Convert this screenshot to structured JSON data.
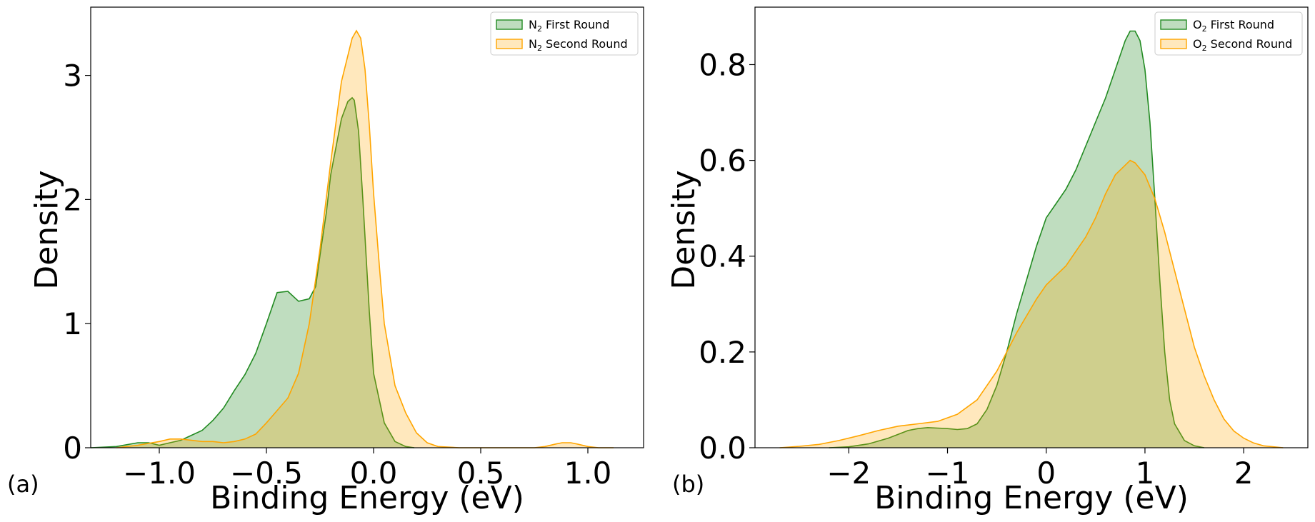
{
  "figure": {
    "panels": [
      {
        "id": "a",
        "panel_label": "(a)"
      },
      {
        "id": "b",
        "panel_label": "(b)"
      }
    ]
  },
  "chart_data": [
    {
      "type": "area",
      "panel_label": "(a)",
      "xlabel": "Binding Energy (eV)",
      "ylabel": "Density",
      "xlim": [
        -1.32,
        1.26
      ],
      "ylim": [
        0,
        3.55
      ],
      "xticks": [
        -1.0,
        -0.5,
        0.0,
        0.5,
        1.0
      ],
      "xtick_labels": [
        "−1.0",
        "−0.5",
        "0.0",
        "0.5",
        "1.0"
      ],
      "yticks": [
        0,
        1,
        2,
        3
      ],
      "ytick_labels": [
        "0",
        "1",
        "2",
        "3"
      ],
      "grid": false,
      "legend_position": "top-right",
      "series": [
        {
          "name": "N",
          "name_sub": "2",
          "name_suffix": " First Round",
          "color": "#228B22",
          "fill": "rgba(34,139,34,0.29)",
          "x": [
            -1.32,
            -1.2,
            -1.1,
            -1.05,
            -1.0,
            -0.95,
            -0.9,
            -0.85,
            -0.8,
            -0.75,
            -0.7,
            -0.65,
            -0.6,
            -0.55,
            -0.5,
            -0.45,
            -0.4,
            -0.35,
            -0.3,
            -0.27,
            -0.25,
            -0.22,
            -0.2,
            -0.15,
            -0.12,
            -0.1,
            -0.09,
            -0.07,
            -0.05,
            -0.02,
            0.0,
            0.05,
            0.1,
            0.15,
            0.19
          ],
          "y": [
            0.0,
            0.01,
            0.04,
            0.04,
            0.02,
            0.04,
            0.06,
            0.1,
            0.14,
            0.22,
            0.32,
            0.46,
            0.59,
            0.76,
            1.0,
            1.25,
            1.26,
            1.18,
            1.2,
            1.3,
            1.55,
            1.9,
            2.2,
            2.65,
            2.79,
            2.82,
            2.8,
            2.55,
            2.0,
            1.1,
            0.6,
            0.2,
            0.05,
            0.01,
            0.0
          ]
        },
        {
          "name": "N",
          "name_sub": "2",
          "name_suffix": " Second Round",
          "color": "#FFA500",
          "fill": "rgba(255,165,0,0.26)",
          "x": [
            -1.2,
            -1.1,
            -1.0,
            -0.95,
            -0.9,
            -0.85,
            -0.8,
            -0.75,
            -0.7,
            -0.65,
            -0.6,
            -0.55,
            -0.5,
            -0.45,
            -0.4,
            -0.35,
            -0.3,
            -0.25,
            -0.2,
            -0.15,
            -0.1,
            -0.08,
            -0.06,
            -0.04,
            -0.02,
            0.0,
            0.03,
            0.05,
            0.1,
            0.15,
            0.2,
            0.25,
            0.3,
            0.4,
            0.5,
            0.6,
            0.7,
            0.75,
            0.8,
            0.85,
            0.88,
            0.92,
            0.95,
            1.0,
            1.05,
            1.12
          ],
          "y": [
            0.0,
            0.02,
            0.05,
            0.07,
            0.07,
            0.06,
            0.05,
            0.05,
            0.04,
            0.05,
            0.07,
            0.11,
            0.2,
            0.3,
            0.4,
            0.6,
            1.0,
            1.6,
            2.3,
            2.95,
            3.3,
            3.36,
            3.3,
            3.05,
            2.6,
            2.05,
            1.4,
            1.0,
            0.5,
            0.28,
            0.12,
            0.04,
            0.01,
            0.0,
            0.0,
            0.0,
            0.0,
            0.0,
            0.01,
            0.03,
            0.04,
            0.04,
            0.03,
            0.01,
            0.0,
            0.0
          ]
        }
      ]
    },
    {
      "type": "area",
      "panel_label": "(b)",
      "xlabel": "Binding Energy (eV)",
      "ylabel": "Density",
      "xlim": [
        -2.95,
        2.65
      ],
      "ylim": [
        0,
        0.92
      ],
      "xticks": [
        -2,
        -1,
        0,
        1,
        2
      ],
      "xtick_labels": [
        "−2",
        "−1",
        "0",
        "1",
        "2"
      ],
      "yticks": [
        0.0,
        0.2,
        0.4,
        0.6,
        0.8
      ],
      "ytick_labels": [
        "0.0",
        "0.2",
        "0.4",
        "0.6",
        "0.8"
      ],
      "grid": false,
      "legend_position": "top-right",
      "series": [
        {
          "name": "O",
          "name_sub": "2",
          "name_suffix": " First Round",
          "color": "#228B22",
          "fill": "rgba(34,139,34,0.29)",
          "x": [
            -2.2,
            -2.0,
            -1.8,
            -1.6,
            -1.4,
            -1.3,
            -1.2,
            -1.1,
            -1.0,
            -0.9,
            -0.8,
            -0.7,
            -0.6,
            -0.5,
            -0.4,
            -0.3,
            -0.2,
            -0.1,
            0.0,
            0.1,
            0.2,
            0.3,
            0.4,
            0.5,
            0.6,
            0.7,
            0.8,
            0.85,
            0.9,
            0.95,
            1.0,
            1.05,
            1.1,
            1.15,
            1.2,
            1.25,
            1.3,
            1.4,
            1.5,
            1.6
          ],
          "y": [
            0.0,
            0.002,
            0.008,
            0.02,
            0.036,
            0.04,
            0.042,
            0.041,
            0.04,
            0.038,
            0.04,
            0.05,
            0.08,
            0.13,
            0.2,
            0.28,
            0.35,
            0.42,
            0.48,
            0.51,
            0.54,
            0.58,
            0.63,
            0.68,
            0.73,
            0.79,
            0.85,
            0.87,
            0.87,
            0.85,
            0.79,
            0.68,
            0.52,
            0.35,
            0.2,
            0.1,
            0.05,
            0.015,
            0.004,
            0.0
          ]
        },
        {
          "name": "O",
          "name_sub": "2",
          "name_suffix": " Second Round",
          "color": "#FFA500",
          "fill": "rgba(255,165,0,0.26)",
          "x": [
            -2.7,
            -2.5,
            -2.3,
            -2.1,
            -1.9,
            -1.7,
            -1.5,
            -1.3,
            -1.1,
            -0.9,
            -0.7,
            -0.5,
            -0.3,
            -0.1,
            0.0,
            0.1,
            0.2,
            0.3,
            0.4,
            0.5,
            0.6,
            0.7,
            0.8,
            0.85,
            0.9,
            1.0,
            1.1,
            1.2,
            1.3,
            1.4,
            1.5,
            1.6,
            1.7,
            1.8,
            1.9,
            2.0,
            2.1,
            2.2,
            2.4
          ],
          "y": [
            0.0,
            0.003,
            0.007,
            0.015,
            0.025,
            0.036,
            0.045,
            0.05,
            0.055,
            0.07,
            0.1,
            0.16,
            0.24,
            0.31,
            0.34,
            0.36,
            0.38,
            0.41,
            0.44,
            0.48,
            0.53,
            0.57,
            0.59,
            0.6,
            0.595,
            0.57,
            0.52,
            0.45,
            0.37,
            0.29,
            0.21,
            0.15,
            0.1,
            0.06,
            0.035,
            0.02,
            0.01,
            0.004,
            0.0
          ]
        }
      ]
    }
  ]
}
